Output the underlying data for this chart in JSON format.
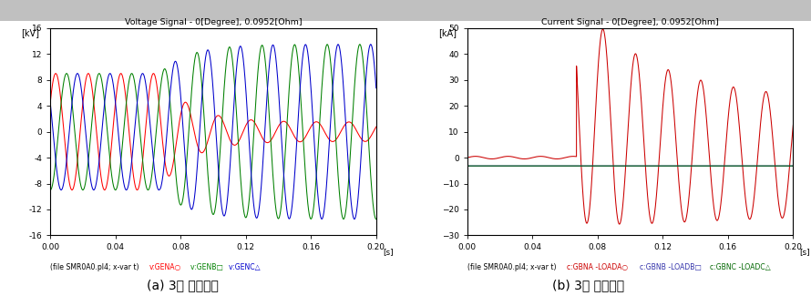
{
  "left_title": "Voltage Signal - 0[Degree], 0.0952[Ohm]",
  "right_title": "Current Signal - 0[Degree], 0.0952[Ohm]",
  "left_ylabel": "[kV]",
  "right_ylabel": "[kA]",
  "xlabel": "[s]",
  "left_ylim": [
    -16,
    16
  ],
  "right_ylim": [
    -30,
    50
  ],
  "xlim": [
    0.0,
    0.2
  ],
  "left_yticks": [
    -16,
    -12,
    -8,
    -4,
    0,
    4,
    8,
    12,
    16
  ],
  "right_yticks": [
    -30,
    -20,
    -10,
    0,
    10,
    20,
    30,
    40,
    50
  ],
  "xticks": [
    0.0,
    0.04,
    0.08,
    0.12,
    0.16,
    0.2
  ],
  "caption_left": "(a) 3상 전압신호",
  "caption_right": "(b) 3상 전류신호",
  "freq": 50,
  "fault_time": 0.067,
  "color_vA": "#ff0000",
  "color_vB": "#008000",
  "color_vC": "#0000cc",
  "color_iA": "#cc0000",
  "color_iB": "#3333aa",
  "color_iC": "#006600",
  "header_color": "#c0c0c0",
  "bg_color": "#ffffff"
}
